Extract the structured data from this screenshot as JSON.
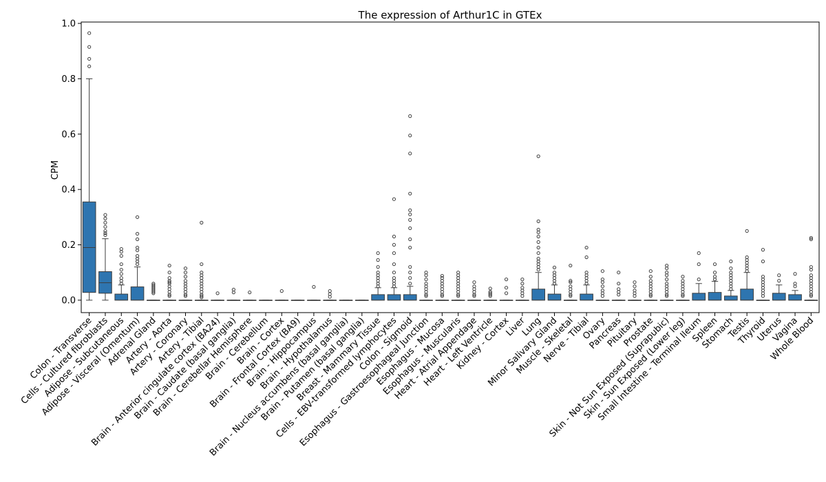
{
  "chart_data": {
    "type": "box",
    "title": "The expression of Arthur1C in GTEx",
    "xlabel": "",
    "ylabel": "CPM",
    "ylim": [
      -0.045,
      1.005
    ],
    "yticks": [
      "0.0",
      "0.2",
      "0.4",
      "0.6",
      "0.8",
      "1.0"
    ],
    "ytick_values": [
      0,
      0.2,
      0.4,
      0.6,
      0.8,
      1.0
    ],
    "grid": false,
    "color": "#2e75b0",
    "categories": [
      "Colon - Transverse",
      "Cells - Cultured fibroblasts",
      "Adipose - Subcutaneous",
      "Adipose - Visceral (Omentum)",
      "Adrenal Gland",
      "Artery - Aorta",
      "Artery - Coronary",
      "Artery - Tibial",
      "Brain - Anterior cingulate cortex (BA24)",
      "Brain - Caudate (basal ganglia)",
      "Brain - Cerebellar Hemisphere",
      "Brain - Cerebellum",
      "Brain - Cortex",
      "Brain - Frontal Cortex (BA9)",
      "Brain - Hippocampus",
      "Brain - Hypothalamus",
      "Brain - Nucleus accumbens (basal ganglia)",
      "Brain - Putamen (basal ganglia)",
      "Breast - Mammary Tissue",
      "Cells - EBV-transformed lymphocytes",
      "Colon - Sigmoid",
      "Esophagus - Gastroesophageal Junction",
      "Esophagus - Mucosa",
      "Esophagus - Muscularis",
      "Heart - Atrial Appendage",
      "Heart - Left Ventricle",
      "Kidney - Cortex",
      "Liver",
      "Lung",
      "Minor Salivary Gland",
      "Muscle - Skeletal",
      "Nerve - Tibial",
      "Ovary",
      "Pancreas",
      "Pituitary",
      "Prostate",
      "Skin - Not Sun Exposed (Suprapubic)",
      "Skin - Sun Exposed (Lower leg)",
      "Small Intestine - Terminal Ileum",
      "Spleen",
      "Stomach",
      "Testis",
      "Thyroid",
      "Uterus",
      "Vagina",
      "Whole Blood"
    ],
    "boxes": [
      {
        "q1": 0.028,
        "median": 0.19,
        "q3": 0.355,
        "whislo": 0,
        "whishi": 0.8,
        "fliers": [
          0.845,
          0.872,
          0.915,
          0.965
        ]
      },
      {
        "q1": 0.025,
        "median": 0.063,
        "q3": 0.103,
        "whislo": 0,
        "whishi": 0.222,
        "fliers": [
          0.235,
          0.242,
          0.25,
          0.265,
          0.28,
          0.295,
          0.308
        ]
      },
      {
        "q1": 0,
        "median": 0,
        "q3": 0.022,
        "whislo": 0,
        "whishi": 0.055,
        "fliers": [
          0.06,
          0.07,
          0.08,
          0.095,
          0.11,
          0.13,
          0.16,
          0.175,
          0.185
        ]
      },
      {
        "q1": 0,
        "median": 0,
        "q3": 0.048,
        "whislo": 0,
        "whishi": 0.12,
        "fliers": [
          0.13,
          0.14,
          0.15,
          0.16,
          0.18,
          0.19,
          0.22,
          0.24,
          0.3
        ]
      },
      {
        "q1": 0,
        "median": 0,
        "q3": 0,
        "whislo": 0,
        "whishi": 0,
        "fliers": [
          0.025,
          0.03,
          0.035,
          0.04,
          0.045,
          0.05,
          0.055,
          0.06
        ]
      },
      {
        "q1": 0,
        "median": 0,
        "q3": 0,
        "whislo": 0,
        "whishi": 0,
        "fliers": [
          0.015,
          0.02,
          0.03,
          0.04,
          0.05,
          0.06,
          0.065,
          0.07,
          0.08,
          0.1,
          0.125
        ]
      },
      {
        "q1": 0,
        "median": 0,
        "q3": 0,
        "whislo": 0,
        "whishi": 0,
        "fliers": [
          0.015,
          0.02,
          0.03,
          0.04,
          0.05,
          0.06,
          0.07,
          0.085,
          0.1,
          0.115
        ]
      },
      {
        "q1": 0,
        "median": 0,
        "q3": 0,
        "whislo": 0,
        "whishi": 0,
        "fliers": [
          0.01,
          0.015,
          0.02,
          0.03,
          0.04,
          0.05,
          0.06,
          0.07,
          0.08,
          0.09,
          0.1,
          0.13,
          0.28
        ]
      },
      {
        "q1": 0,
        "median": 0,
        "q3": 0,
        "whislo": 0,
        "whishi": 0,
        "fliers": [
          0.025
        ]
      },
      {
        "q1": 0,
        "median": 0,
        "q3": 0,
        "whislo": 0,
        "whishi": 0,
        "fliers": [
          0.028,
          0.038
        ]
      },
      {
        "q1": 0,
        "median": 0,
        "q3": 0,
        "whislo": 0,
        "whishi": 0,
        "fliers": [
          0.028
        ]
      },
      {
        "q1": 0,
        "median": 0,
        "q3": 0,
        "whislo": 0,
        "whishi": 0,
        "fliers": []
      },
      {
        "q1": 0,
        "median": 0,
        "q3": 0,
        "whislo": 0,
        "whishi": 0,
        "fliers": [
          0.033
        ]
      },
      {
        "q1": 0,
        "median": 0,
        "q3": 0,
        "whislo": 0,
        "whishi": 0,
        "fliers": []
      },
      {
        "q1": 0,
        "median": 0,
        "q3": 0,
        "whislo": 0,
        "whishi": 0,
        "fliers": [
          0.048
        ]
      },
      {
        "q1": 0,
        "median": 0,
        "q3": 0,
        "whislo": 0,
        "whishi": 0,
        "fliers": [
          0.012,
          0.022,
          0.033
        ]
      },
      {
        "q1": 0,
        "median": 0,
        "q3": 0,
        "whislo": 0,
        "whishi": 0,
        "fliers": []
      },
      {
        "q1": 0,
        "median": 0,
        "q3": 0,
        "whislo": 0,
        "whishi": 0,
        "fliers": []
      },
      {
        "q1": 0,
        "median": 0,
        "q3": 0.02,
        "whislo": 0,
        "whishi": 0.045,
        "fliers": [
          0.05,
          0.06,
          0.07,
          0.08,
          0.09,
          0.1,
          0.12,
          0.145,
          0.17
        ]
      },
      {
        "q1": 0,
        "median": 0,
        "q3": 0.02,
        "whislo": 0,
        "whishi": 0.045,
        "fliers": [
          0.05,
          0.06,
          0.07,
          0.08,
          0.1,
          0.13,
          0.17,
          0.2,
          0.23,
          0.365
        ]
      },
      {
        "q1": 0,
        "median": 0,
        "q3": 0.02,
        "whislo": 0,
        "whishi": 0.05,
        "fliers": [
          0.06,
          0.08,
          0.1,
          0.12,
          0.19,
          0.22,
          0.26,
          0.29,
          0.31,
          0.325,
          0.385,
          0.53,
          0.595,
          0.665
        ]
      },
      {
        "q1": 0,
        "median": 0,
        "q3": 0,
        "whislo": 0,
        "whishi": 0,
        "fliers": [
          0.015,
          0.02,
          0.03,
          0.04,
          0.05,
          0.06,
          0.075,
          0.09,
          0.1
        ]
      },
      {
        "q1": 0,
        "median": 0,
        "q3": 0,
        "whislo": 0,
        "whishi": 0,
        "fliers": [
          0.015,
          0.02,
          0.03,
          0.04,
          0.05,
          0.06,
          0.07,
          0.08,
          0.088
        ]
      },
      {
        "q1": 0,
        "median": 0,
        "q3": 0,
        "whislo": 0,
        "whishi": 0,
        "fliers": [
          0.015,
          0.02,
          0.03,
          0.04,
          0.05,
          0.06,
          0.07,
          0.08,
          0.09,
          0.1
        ]
      },
      {
        "q1": 0,
        "median": 0,
        "q3": 0,
        "whislo": 0,
        "whishi": 0,
        "fliers": [
          0.015,
          0.02,
          0.03,
          0.04,
          0.05,
          0.065
        ]
      },
      {
        "q1": 0,
        "median": 0,
        "q3": 0,
        "whislo": 0,
        "whishi": 0,
        "fliers": [
          0.015,
          0.02,
          0.025,
          0.03,
          0.042
        ]
      },
      {
        "q1": 0,
        "median": 0,
        "q3": 0,
        "whislo": 0,
        "whishi": 0,
        "fliers": [
          0.025,
          0.045,
          0.075
        ]
      },
      {
        "q1": 0,
        "median": 0,
        "q3": 0,
        "whislo": 0,
        "whishi": 0,
        "fliers": [
          0.015,
          0.025,
          0.035,
          0.045,
          0.06,
          0.075
        ]
      },
      {
        "q1": 0,
        "median": 0,
        "q3": 0.04,
        "whislo": 0,
        "whishi": 0.1,
        "fliers": [
          0.11,
          0.12,
          0.13,
          0.14,
          0.15,
          0.17,
          0.19,
          0.21,
          0.23,
          0.245,
          0.255,
          0.285,
          0.52
        ]
      },
      {
        "q1": 0,
        "median": 0,
        "q3": 0.022,
        "whislo": 0,
        "whishi": 0.055,
        "fliers": [
          0.06,
          0.07,
          0.08,
          0.09,
          0.1,
          0.118
        ]
      },
      {
        "q1": 0,
        "median": 0,
        "q3": 0,
        "whislo": 0,
        "whishi": 0,
        "fliers": [
          0.015,
          0.02,
          0.03,
          0.04,
          0.05,
          0.065,
          0.07,
          0.125
        ]
      },
      {
        "q1": 0,
        "median": 0,
        "q3": 0.022,
        "whislo": 0,
        "whishi": 0.055,
        "fliers": [
          0.06,
          0.07,
          0.08,
          0.09,
          0.1,
          0.155,
          0.19
        ]
      },
      {
        "q1": 0,
        "median": 0,
        "q3": 0,
        "whislo": 0,
        "whishi": 0,
        "fliers": [
          0.015,
          0.025,
          0.035,
          0.05,
          0.065,
          0.075,
          0.105
        ]
      },
      {
        "q1": 0,
        "median": 0,
        "q3": 0,
        "whislo": 0,
        "whishi": 0,
        "fliers": [
          0.02,
          0.03,
          0.04,
          0.06,
          0.1
        ]
      },
      {
        "q1": 0,
        "median": 0,
        "q3": 0,
        "whislo": 0,
        "whishi": 0,
        "fliers": [
          0.015,
          0.025,
          0.035,
          0.05,
          0.065
        ]
      },
      {
        "q1": 0,
        "median": 0,
        "q3": 0,
        "whislo": 0,
        "whishi": 0,
        "fliers": [
          0.015,
          0.02,
          0.03,
          0.04,
          0.05,
          0.06,
          0.07,
          0.085,
          0.105
        ]
      },
      {
        "q1": 0,
        "median": 0,
        "q3": 0,
        "whislo": 0,
        "whishi": 0,
        "fliers": [
          0.015,
          0.02,
          0.03,
          0.04,
          0.05,
          0.06,
          0.075,
          0.09,
          0.1,
          0.115,
          0.125
        ]
      },
      {
        "q1": 0,
        "median": 0,
        "q3": 0,
        "whislo": 0,
        "whishi": 0,
        "fliers": [
          0.015,
          0.02,
          0.03,
          0.04,
          0.05,
          0.06,
          0.07,
          0.085
        ]
      },
      {
        "q1": 0,
        "median": 0,
        "q3": 0.025,
        "whislo": 0,
        "whishi": 0.06,
        "fliers": [
          0.075,
          0.13,
          0.17
        ]
      },
      {
        "q1": 0,
        "median": 0,
        "q3": 0.028,
        "whislo": 0,
        "whishi": 0.068,
        "fliers": [
          0.075,
          0.085,
          0.1,
          0.13
        ]
      },
      {
        "q1": 0,
        "median": 0,
        "q3": 0.015,
        "whislo": 0,
        "whishi": 0.035,
        "fliers": [
          0.04,
          0.05,
          0.06,
          0.07,
          0.08,
          0.09,
          0.1,
          0.115,
          0.14
        ]
      },
      {
        "q1": 0,
        "median": 0,
        "q3": 0.04,
        "whislo": 0,
        "whishi": 0.1,
        "fliers": [
          0.105,
          0.115,
          0.125,
          0.135,
          0.145,
          0.155,
          0.25
        ]
      },
      {
        "q1": 0,
        "median": 0,
        "q3": 0,
        "whislo": 0,
        "whishi": 0,
        "fliers": [
          0.015,
          0.025,
          0.035,
          0.045,
          0.055,
          0.065,
          0.075,
          0.085,
          0.14,
          0.182
        ]
      },
      {
        "q1": 0,
        "median": 0,
        "q3": 0.025,
        "whislo": 0,
        "whishi": 0.055,
        "fliers": [
          0.07,
          0.09
        ]
      },
      {
        "q1": 0,
        "median": 0,
        "q3": 0.02,
        "whislo": 0,
        "whishi": 0.035,
        "fliers": [
          0.05,
          0.06,
          0.095
        ]
      },
      {
        "q1": 0,
        "median": 0,
        "q3": 0,
        "whislo": 0,
        "whishi": 0,
        "fliers": [
          0.015,
          0.02,
          0.03,
          0.04,
          0.05,
          0.06,
          0.07,
          0.08,
          0.09,
          0.11,
          0.12,
          0.22,
          0.225
        ]
      }
    ]
  }
}
